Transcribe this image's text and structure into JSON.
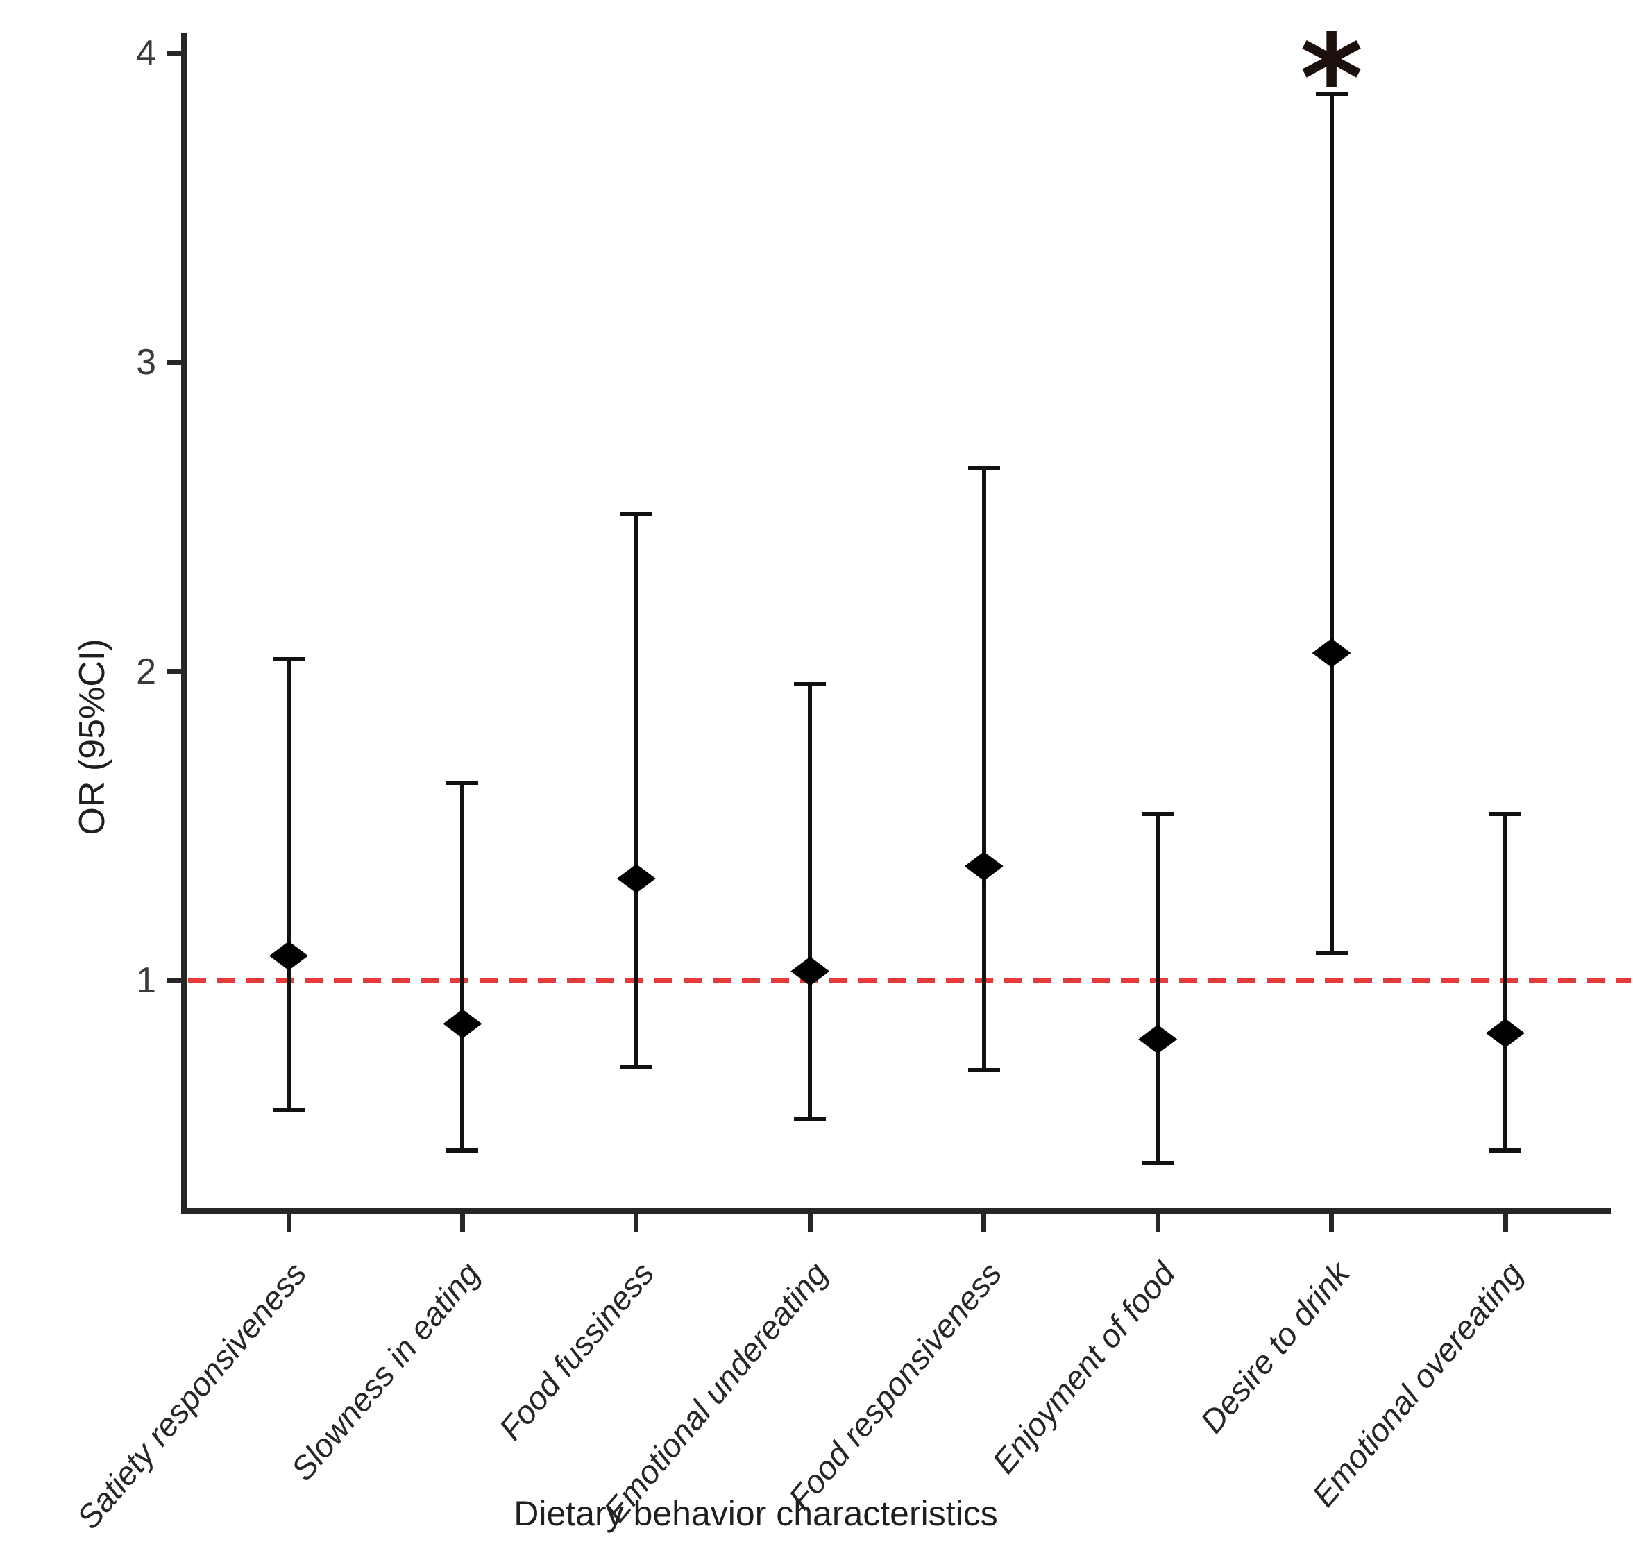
{
  "figure": {
    "x_axis_title": "Dietary behavior characteristics",
    "y_axis_title": "OR (95%CI)",
    "significance_marker": "*"
  },
  "chart_data": {
    "type": "scatter",
    "subtype": "forest-errorbar",
    "title": "",
    "xlabel": "Dietary behavior characteristics",
    "ylabel": "OR (95%CI)",
    "grid": false,
    "legend": "none",
    "y_ticks": [
      4,
      3,
      2,
      1
    ],
    "ylim": [
      0.2,
      4.05
    ],
    "marker": "black-diamond",
    "errorbar_color": "#111111",
    "reference_line": {
      "y": 1,
      "style": "dashed",
      "color": "#e83a38"
    },
    "categories": [
      "Satiety responsiveness",
      "Slowness in eating",
      "Food fussiness",
      "Emotional undereating",
      "Food responsiveness",
      "Enjoyment of food",
      "Desire to drink",
      "Emotional overeating"
    ],
    "series": [
      {
        "category": "Satiety responsiveness",
        "or": 1.08,
        "ci_low": 0.58,
        "ci_high": 2.04,
        "significant": false
      },
      {
        "category": "Slowness in eating",
        "or": 0.86,
        "ci_low": 0.45,
        "ci_high": 1.64,
        "significant": false
      },
      {
        "category": "Food fussiness",
        "or": 1.33,
        "ci_low": 0.72,
        "ci_high": 2.51,
        "significant": false
      },
      {
        "category": "Emotional undereating",
        "or": 1.03,
        "ci_low": 0.55,
        "ci_high": 1.96,
        "significant": false
      },
      {
        "category": "Food responsiveness",
        "or": 1.37,
        "ci_low": 0.71,
        "ci_high": 2.66,
        "significant": false
      },
      {
        "category": "Enjoyment of food",
        "or": 0.81,
        "ci_low": 0.41,
        "ci_high": 1.54,
        "significant": false
      },
      {
        "category": "Desire to drink",
        "or": 2.06,
        "ci_low": 1.09,
        "ci_high": 3.87,
        "significant": true
      },
      {
        "category": "Emotional overeating",
        "or": 0.83,
        "ci_low": 0.45,
        "ci_high": 1.54,
        "significant": false
      }
    ]
  }
}
